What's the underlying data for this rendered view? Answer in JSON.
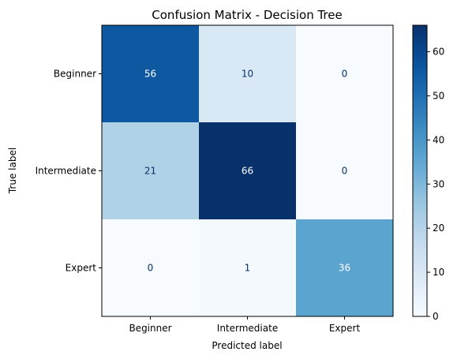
{
  "chart_data": {
    "type": "heatmap",
    "title": "Confusion Matrix - Decision Tree",
    "xlabel": "Predicted label",
    "ylabel": "True label",
    "x_categories": [
      "Beginner",
      "Intermediate",
      "Expert"
    ],
    "y_categories": [
      "Beginner",
      "Intermediate",
      "Expert"
    ],
    "values": [
      [
        56,
        10,
        0
      ],
      [
        21,
        66,
        0
      ],
      [
        0,
        1,
        36
      ]
    ],
    "colormap": "Blues",
    "colorbar": {
      "range": [
        0,
        66
      ],
      "ticks": [
        0,
        10,
        20,
        30,
        40,
        50,
        60
      ]
    },
    "grid": false
  }
}
